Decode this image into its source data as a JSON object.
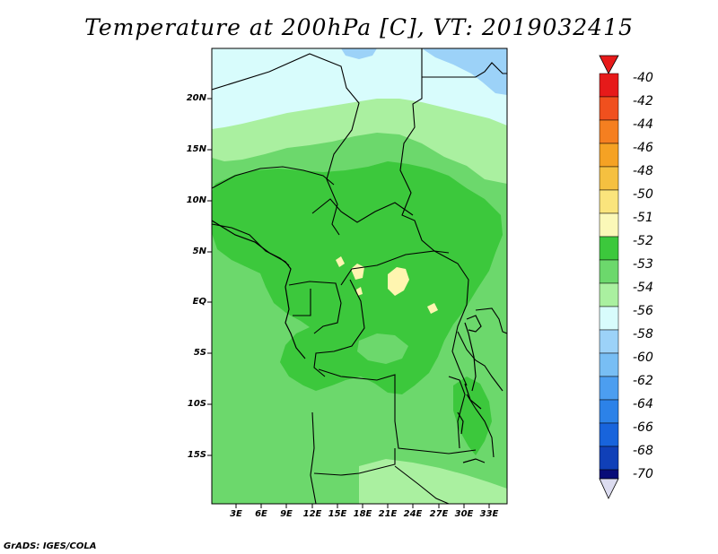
{
  "title": "Temperature at 200hPa [C], VT: 2019032415",
  "credit": "GrADS: IGES/COLA",
  "map": {
    "lat_labels": [
      "20N",
      "15N",
      "10N",
      "5N",
      "EQ",
      "5S",
      "10S",
      "15S"
    ],
    "lon_labels": [
      "3E",
      "6E",
      "9E",
      "12E",
      "15E",
      "18E",
      "21E",
      "24E",
      "27E",
      "30E",
      "33E"
    ],
    "colors": {
      "land_fill": "#78d878",
      "band_52": "#3cc83c",
      "band_53": "#6cd86c",
      "band_54": "#aaf0a0",
      "band_56": "#d8fcfc",
      "band_58": "#9cd2f8",
      "warm_spot": "#fff5b0",
      "border": "#000000"
    }
  },
  "colorbar": {
    "labels": [
      "-40",
      "-42",
      "-44",
      "-46",
      "-48",
      "-50",
      "-51",
      "-52",
      "-53",
      "-54",
      "-56",
      "-58",
      "-60",
      "-62",
      "-64",
      "-66",
      "-68",
      "-70"
    ],
    "colors": [
      "#e61a1a",
      "#f0501e",
      "#f57f20",
      "#f5a224",
      "#f5c040",
      "#fae47c",
      "#fbf8b8",
      "#3cc83c",
      "#6cd86c",
      "#aaf0a0",
      "#d8fcfc",
      "#9cd2f8",
      "#78bef4",
      "#4c9ef0",
      "#2c82e8",
      "#1864dc",
      "#1040b8",
      "#080c78",
      "#dcdcf0"
    ]
  }
}
